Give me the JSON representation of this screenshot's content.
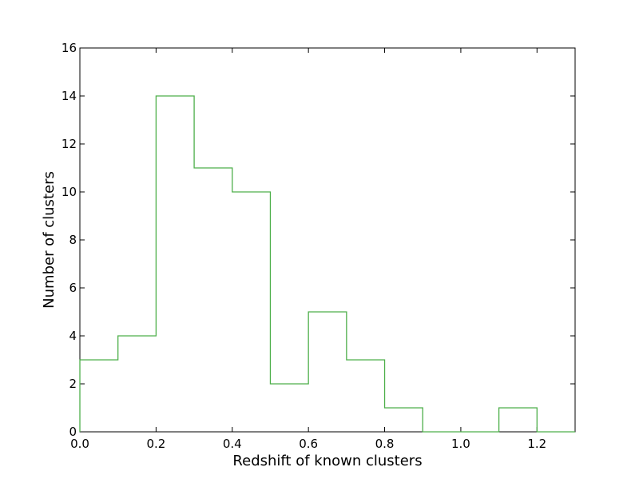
{
  "chart_data": {
    "type": "histogram",
    "xlabel": "Redshift of known clusters",
    "ylabel": "Number of clusters",
    "xlim": [
      0.0,
      1.3
    ],
    "ylim": [
      0,
      16
    ],
    "grid": false,
    "bin_edges": [
      0.0,
      0.1,
      0.2,
      0.3,
      0.4,
      0.5,
      0.6,
      0.7,
      0.8,
      0.9,
      1.0,
      1.1,
      1.2,
      1.3
    ],
    "counts": [
      3,
      4,
      14,
      11,
      10,
      2,
      5,
      3,
      1,
      0,
      0,
      1,
      0
    ],
    "x_ticks": [
      "0.0",
      "0.2",
      "0.4",
      "0.6",
      "0.8",
      "1.0",
      "1.2"
    ],
    "y_ticks": [
      "0",
      "2",
      "4",
      "6",
      "8",
      "10",
      "12",
      "14",
      "16"
    ],
    "line_color": "#4daf4a"
  }
}
